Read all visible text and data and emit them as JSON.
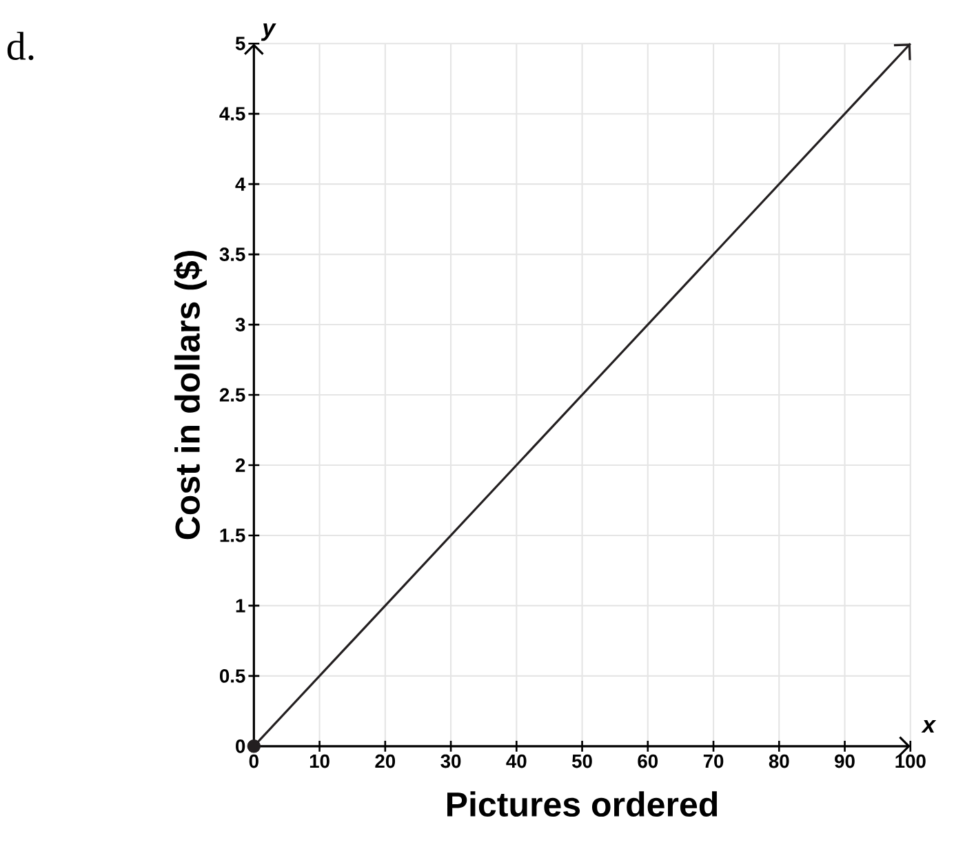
{
  "chart_data": {
    "type": "line",
    "xlabel": "Pictures ordered",
    "ylabel": "Cost in dollars ($)",
    "annotations": [
      "d.",
      "x",
      "y"
    ],
    "xlim": [
      0,
      100
    ],
    "xticks": [
      0,
      10,
      20,
      30,
      40,
      50,
      60,
      70,
      80,
      90,
      100
    ],
    "ylim": [
      0,
      5
    ],
    "yticks": [
      0,
      0.5,
      1,
      1.5,
      2,
      2.5,
      3,
      3.5,
      4,
      4.5,
      5
    ],
    "grid": true,
    "x": [
      0,
      100
    ],
    "series": [
      {
        "color": "#231f20",
        "values": [
          0,
          5
        ]
      },
      {
        "type": "scatter",
        "color": "#231f20",
        "x": [
          0
        ],
        "values": [
          0
        ],
        "marker": "circle"
      }
    ]
  }
}
